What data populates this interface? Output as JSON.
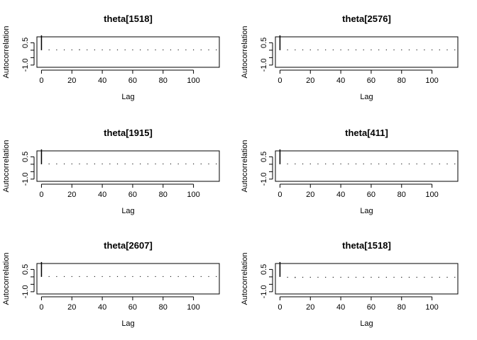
{
  "chart_data": [
    {
      "type": "bar",
      "title": "theta[1518]",
      "xlabel": "Lag",
      "ylabel": "Autocorrelation",
      "xlim": [
        -3,
        117
      ],
      "ylim": [
        -1.15,
        0.9
      ],
      "xticks": [
        "0",
        "20",
        "40",
        "60",
        "80",
        "100"
      ],
      "yticks": [
        "-1.0",
        "0.5"
      ],
      "lags": [
        0,
        5,
        10,
        15,
        20,
        25,
        30,
        35,
        40,
        45,
        50,
        55,
        60,
        65,
        70,
        75,
        80,
        85,
        90,
        95,
        100,
        105,
        110,
        115
      ],
      "values": [
        1.0,
        0.03,
        0.02,
        0.02,
        0.02,
        0.06,
        0.04,
        0.02,
        0.02,
        0.02,
        0.02,
        0.02,
        0.02,
        0.04,
        0.02,
        0.02,
        0.02,
        0.02,
        0.02,
        0.02,
        0.02,
        0.02,
        0.02,
        0.02
      ]
    },
    {
      "type": "bar",
      "title": "theta[2576]",
      "xlabel": "Lag",
      "ylabel": "Autocorrelation",
      "xlim": [
        -3,
        117
      ],
      "ylim": [
        -1.15,
        0.9
      ],
      "xticks": [
        "0",
        "20",
        "40",
        "60",
        "80",
        "100"
      ],
      "yticks": [
        "-1.0",
        "0.5"
      ],
      "lags": [
        0,
        5,
        10,
        15,
        20,
        25,
        30,
        35,
        40,
        45,
        50,
        55,
        60,
        65,
        70,
        75,
        80,
        85,
        90,
        95,
        100,
        105,
        110,
        115
      ],
      "values": [
        1.0,
        0.02,
        0.02,
        0.02,
        0.02,
        0.02,
        0.02,
        0.02,
        0.02,
        0.02,
        0.02,
        0.02,
        0.02,
        0.02,
        0.02,
        0.02,
        0.02,
        0.02,
        0.02,
        0.02,
        0.02,
        0.02,
        0.04,
        0.04
      ]
    },
    {
      "type": "bar",
      "title": "theta[1915]",
      "xlabel": "Lag",
      "ylabel": "Autocorrelation",
      "xlim": [
        -3,
        117
      ],
      "ylim": [
        -1.15,
        0.9
      ],
      "xticks": [
        "0",
        "20",
        "40",
        "60",
        "80",
        "100"
      ],
      "yticks": [
        "-1.0",
        "0.5"
      ],
      "lags": [
        0,
        5,
        10,
        15,
        20,
        25,
        30,
        35,
        40,
        45,
        50,
        55,
        60,
        65,
        70,
        75,
        80,
        85,
        90,
        95,
        100,
        105,
        110,
        115
      ],
      "values": [
        1.0,
        0.02,
        0.02,
        0.02,
        0.02,
        0.04,
        0.02,
        0.02,
        0.02,
        0.02,
        0.02,
        0.04,
        0.02,
        0.02,
        0.02,
        0.02,
        0.02,
        0.02,
        0.02,
        0.04,
        0.02,
        0.02,
        0.02,
        0.02
      ]
    },
    {
      "type": "bar",
      "title": "theta[411]",
      "xlabel": "Lag",
      "ylabel": "Autocorrelation",
      "xlim": [
        -3,
        117
      ],
      "ylim": [
        -1.15,
        0.9
      ],
      "xticks": [
        "0",
        "20",
        "40",
        "60",
        "80",
        "100"
      ],
      "yticks": [
        "-1.0",
        "0.5"
      ],
      "lags": [
        0,
        5,
        10,
        15,
        20,
        25,
        30,
        35,
        40,
        45,
        50,
        55,
        60,
        65,
        70,
        75,
        80,
        85,
        90,
        95,
        100,
        105,
        110,
        115
      ],
      "values": [
        1.0,
        0.02,
        0.02,
        0.02,
        0.02,
        0.02,
        0.02,
        0.02,
        0.02,
        0.02,
        0.02,
        0.02,
        0.02,
        0.02,
        0.04,
        0.02,
        0.02,
        0.02,
        0.02,
        0.02,
        0.02,
        0.02,
        0.02,
        0.02
      ]
    },
    {
      "type": "bar",
      "title": "theta[2607]",
      "xlabel": "Lag",
      "ylabel": "Autocorrelation",
      "xlim": [
        -3,
        117
      ],
      "ylim": [
        -1.15,
        0.9
      ],
      "xticks": [
        "0",
        "20",
        "40",
        "60",
        "80",
        "100"
      ],
      "yticks": [
        "-1.0",
        "0.5"
      ],
      "lags": [
        0,
        5,
        10,
        15,
        20,
        25,
        30,
        35,
        40,
        45,
        50,
        55,
        60,
        65,
        70,
        75,
        80,
        85,
        90,
        95,
        100,
        105,
        110,
        115
      ],
      "values": [
        1.0,
        0.02,
        0.02,
        0.02,
        0.02,
        0.02,
        0.04,
        0.02,
        0.02,
        0.02,
        0.02,
        0.02,
        0.02,
        0.02,
        0.02,
        0.02,
        0.02,
        0.02,
        0.02,
        0.02,
        0.02,
        0.02,
        0.02,
        0.02
      ]
    },
    {
      "type": "bar",
      "title": "theta[1518]",
      "xlabel": "Lag",
      "ylabel": "Autocorrelation",
      "xlim": [
        -3,
        117
      ],
      "ylim": [
        -1.15,
        0.9
      ],
      "xticks": [
        "0",
        "20",
        "40",
        "60",
        "80",
        "100"
      ],
      "yticks": [
        "-1.0",
        "0.5"
      ],
      "lags": [
        0,
        5,
        10,
        15,
        20,
        25,
        30,
        35,
        40,
        45,
        50,
        55,
        60,
        65,
        70,
        75,
        80,
        85,
        90,
        95,
        100,
        105,
        110,
        115
      ],
      "values": [
        1.0,
        -0.05,
        -0.07,
        -0.05,
        -0.05,
        -0.05,
        -0.05,
        -0.05,
        -0.05,
        -0.05,
        -0.05,
        -0.05,
        -0.05,
        -0.05,
        -0.05,
        -0.05,
        -0.05,
        -0.05,
        -0.05,
        -0.05,
        -0.05,
        -0.05,
        -0.05,
        -0.05
      ]
    }
  ]
}
